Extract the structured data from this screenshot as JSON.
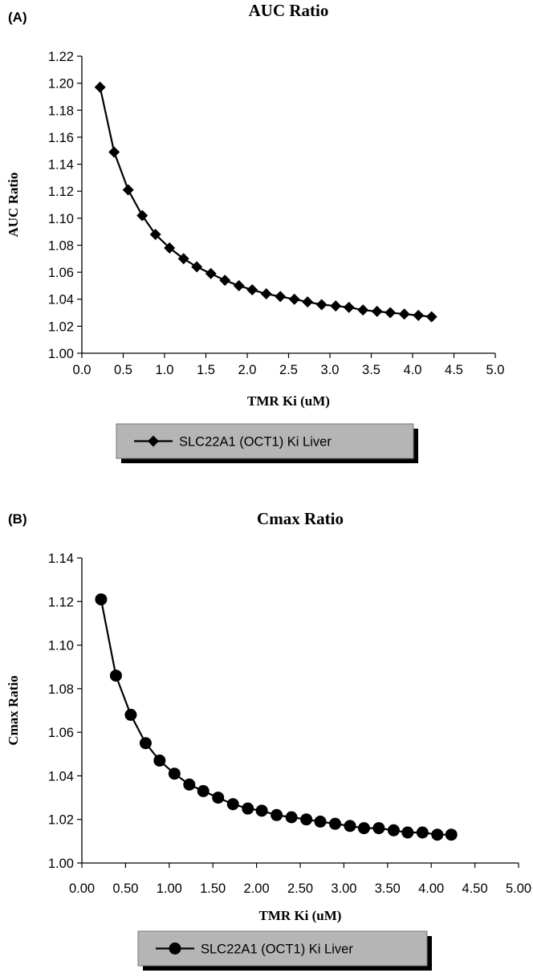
{
  "chart_data": [
    {
      "type": "line",
      "panel_label": "(A)",
      "title": "AUC Ratio",
      "xlabel": "TMR Ki (uM)",
      "ylabel": "AUC Ratio",
      "xlim": [
        0,
        5
      ],
      "ylim": [
        1.0,
        1.22
      ],
      "x_ticks": [
        "0.0",
        "0.5",
        "1.0",
        "1.5",
        "2.0",
        "2.5",
        "3.0",
        "3.5",
        "4.0",
        "4.5",
        "5.0"
      ],
      "y_ticks": [
        "1.00",
        "1.02",
        "1.04",
        "1.06",
        "1.08",
        "1.10",
        "1.12",
        "1.14",
        "1.16",
        "1.18",
        "1.20",
        "1.22"
      ],
      "marker": "diamond",
      "legend_placement": "bottom",
      "series": [
        {
          "name": "SLC22A1 (OCT1) Ki Liver",
          "x": [
            0.22,
            0.39,
            0.56,
            0.73,
            0.89,
            1.06,
            1.23,
            1.39,
            1.56,
            1.73,
            1.9,
            2.06,
            2.23,
            2.4,
            2.57,
            2.73,
            2.9,
            3.07,
            3.23,
            3.4,
            3.57,
            3.73,
            3.9,
            4.07,
            4.23
          ],
          "y": [
            1.197,
            1.149,
            1.121,
            1.102,
            1.088,
            1.078,
            1.07,
            1.064,
            1.059,
            1.054,
            1.05,
            1.047,
            1.044,
            1.042,
            1.04,
            1.038,
            1.036,
            1.035,
            1.034,
            1.032,
            1.031,
            1.03,
            1.029,
            1.028,
            1.027
          ]
        }
      ]
    },
    {
      "type": "line",
      "panel_label": "(B)",
      "title": "Cmax Ratio",
      "xlabel": "TMR Ki (uM)",
      "ylabel": "Cmax Ratio",
      "xlim": [
        0,
        5
      ],
      "ylim": [
        1.0,
        1.14
      ],
      "x_ticks": [
        "0.00",
        "0.50",
        "1.00",
        "1.50",
        "2.00",
        "2.50",
        "3.00",
        "3.50",
        "4.00",
        "4.50",
        "5.00"
      ],
      "y_ticks": [
        "1.00",
        "1.02",
        "1.04",
        "1.06",
        "1.08",
        "1.10",
        "1.12",
        "1.14"
      ],
      "marker": "circle",
      "legend_placement": "bottom",
      "series": [
        {
          "name": "SLC22A1 (OCT1) Ki Liver",
          "x": [
            0.22,
            0.39,
            0.56,
            0.73,
            0.89,
            1.06,
            1.23,
            1.39,
            1.56,
            1.73,
            1.9,
            2.06,
            2.23,
            2.4,
            2.57,
            2.73,
            2.9,
            3.07,
            3.23,
            3.4,
            3.57,
            3.73,
            3.9,
            4.07,
            4.23
          ],
          "y": [
            1.121,
            1.086,
            1.068,
            1.055,
            1.047,
            1.041,
            1.036,
            1.033,
            1.03,
            1.027,
            1.025,
            1.024,
            1.022,
            1.021,
            1.02,
            1.019,
            1.018,
            1.017,
            1.016,
            1.016,
            1.015,
            1.014,
            1.014,
            1.013,
            1.013
          ]
        }
      ]
    }
  ]
}
